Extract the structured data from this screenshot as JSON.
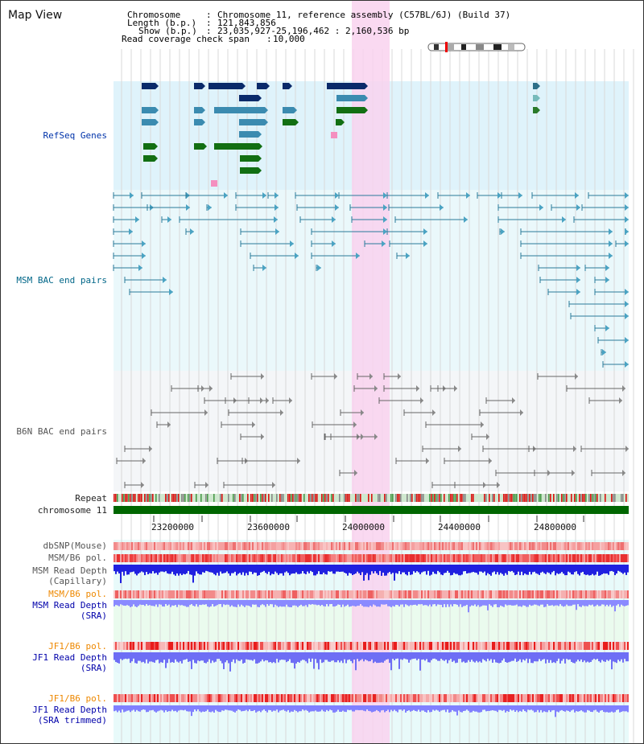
{
  "page": {
    "title": "Map View"
  },
  "header": {
    "chromosome_label": "Chromosome",
    "chromosome_value": "Chromosome 11, reference assembly (C57BL/6J) (Build 37)",
    "length_label": "Length (b.p.)",
    "length_value": "121,843,856",
    "show_label": "Show (b.p.)",
    "show_value": "23,035,927-25,196,462 : 2,160,536 bp",
    "coverage_label": "Read coverage check span",
    "coverage_value": "10,000"
  },
  "tracks": {
    "refseq": "RefSeq Genes",
    "msm_bac": "MSM BAC end pairs",
    "b6n_bac": "B6N BAC end pairs",
    "repeat": "Repeat",
    "chromosome": "chromosome 11",
    "dbsnp": "dbSNP(Mouse)",
    "msm_b6_pol_1": "MSM/B6 pol.",
    "msm_depth_cap_1": "MSM Read Depth",
    "msm_depth_cap_2": "(Capillary)",
    "msm_b6_pol_2": "MSM/B6 pol.",
    "msm_depth_sra_1": "MSM Read Depth",
    "msm_depth_sra_2": "(SRA)",
    "jf1_b6_pol_1": "JF1/B6 pol.",
    "jf1_depth_sra_1": "JF1 Read Depth",
    "jf1_depth_sra_2": "(SRA)",
    "jf1_b6_pol_2": "JF1/B6 pol.",
    "jf1_depth_trim_1": "JF1 Read Depth",
    "jf1_depth_trim_2": "(SRA trimmed)"
  },
  "axis": {
    "ticks": [
      "23200000",
      "23600000",
      "24000000",
      "24400000",
      "24800000"
    ]
  },
  "colors": {
    "refseq_bg": "#dff3fb",
    "msm_bg": "#eaf8fb",
    "b6n_bg": "#f4f6f8",
    "highlight": "#f9d2ee",
    "msm_label": "#006688",
    "gray_label": "#555555",
    "pol_label": "#ee8800",
    "depth_label": "#0000aa",
    "chrom_bar": "#006600",
    "depth_blue": "#2020e0",
    "depth_light": "#8080ff"
  }
}
